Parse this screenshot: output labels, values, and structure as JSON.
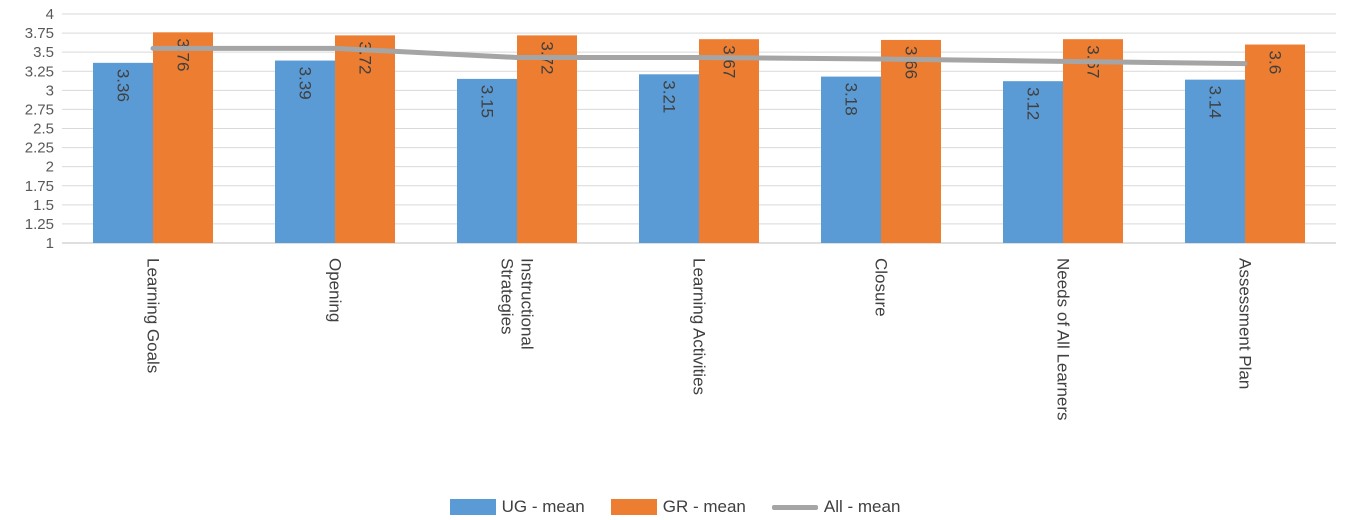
{
  "chart_data": {
    "type": "bar",
    "categories": [
      [
        "Learning Goals"
      ],
      [
        "Opening"
      ],
      [
        "Instructional",
        "Strategies"
      ],
      [
        "Learning Activities"
      ],
      [
        "Closure"
      ],
      [
        "Needs of All Learners"
      ],
      [
        "Assessment Plan"
      ]
    ],
    "series": [
      {
        "name": "UG - mean",
        "type": "bar",
        "color": "#5B9BD5",
        "values": [
          3.36,
          3.39,
          3.15,
          3.21,
          3.18,
          3.12,
          3.14
        ],
        "labels": [
          "3.36",
          "3.39",
          "3.15",
          "3.21",
          "3.18",
          "3.12",
          "3.14"
        ]
      },
      {
        "name": "GR - mean",
        "type": "bar",
        "color": "#ED7D31",
        "values": [
          3.76,
          3.72,
          3.72,
          3.67,
          3.66,
          3.67,
          3.6
        ],
        "labels": [
          "3.76",
          "3.72",
          "3.72",
          "3.67",
          "3.66",
          "3.67",
          "3.6"
        ]
      },
      {
        "name": "All - mean",
        "type": "line",
        "color": "#A5A5A5",
        "values": [
          3.55,
          3.55,
          3.43,
          3.43,
          3.41,
          3.38,
          3.35
        ]
      }
    ],
    "ylim": [
      1,
      4
    ],
    "yticks": [
      "1",
      "1.25",
      "1.5",
      "1.75",
      "2",
      "2.25",
      "2.5",
      "2.75",
      "3",
      "3.25",
      "3.5",
      "3.75",
      "4"
    ],
    "grid": true,
    "legend_position": "bottom"
  }
}
